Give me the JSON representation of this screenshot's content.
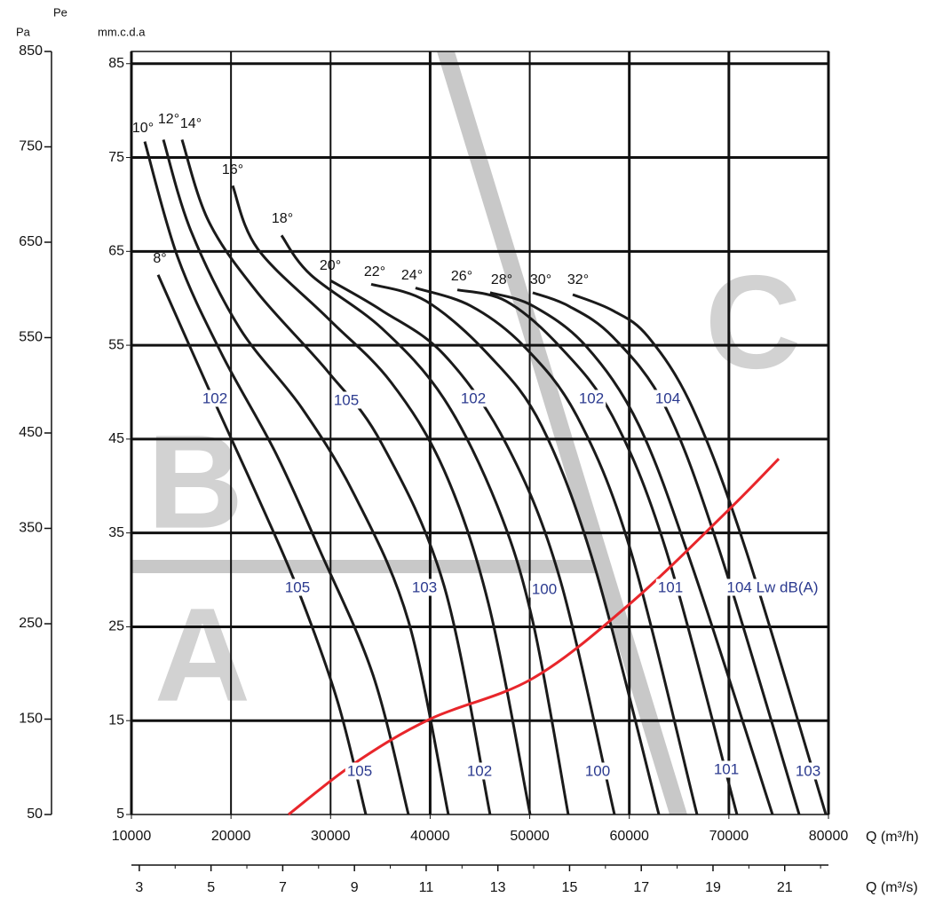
{
  "chart_data": {
    "type": "line",
    "y2_label": "Pa",
    "pressure_symbol": "Pe",
    "y_label": "mm.c.d.a",
    "x_label": "Q (m³/h)",
    "x2_label": "Q (m³/s)",
    "xlim": [
      10000,
      80000
    ],
    "xticks": [
      10000,
      20000,
      30000,
      40000,
      50000,
      60000,
      70000,
      80000
    ],
    "ylim": [
      5,
      86.3
    ],
    "yticks": [
      5,
      15,
      25,
      35,
      45,
      55,
      65,
      75,
      85
    ],
    "y2lim": [
      50,
      850
    ],
    "y2ticks": [
      50,
      150,
      250,
      350,
      450,
      550,
      650,
      750,
      850
    ],
    "x2lim": [
      2.78,
      22.22
    ],
    "x2ticks": [
      3,
      5,
      7,
      9,
      11,
      13,
      15,
      17,
      19,
      21
    ],
    "x2minorticks": [
      4,
      6,
      8,
      10,
      12,
      14,
      16,
      18,
      20,
      22
    ],
    "grid": true,
    "zones": [
      "A",
      "B",
      "C"
    ],
    "zone_color": "#d2d2d2",
    "series": [
      {
        "name": "8°",
        "color": "#1a1a1a",
        "x": [
          12680,
          18200,
          22660,
          26670,
          30690,
          33540
        ],
        "y": [
          62.5,
          49.3,
          38.9,
          29.1,
          17.1,
          5
        ]
      },
      {
        "name": "10°",
        "color": "#1a1a1a",
        "x": [
          11340,
          14640,
          19100,
          24450,
          28900,
          34250,
          37820
        ],
        "y": [
          76.7,
          64.4,
          54.0,
          43.6,
          33.2,
          19.9,
          5
        ]
      },
      {
        "name": "12°",
        "color": "#1a1a1a",
        "x": [
          13210,
          15970,
          20880,
          27120,
          32470,
          37820,
          41830
        ],
        "y": [
          76.9,
          67.2,
          56.8,
          48.3,
          38.9,
          25.6,
          5
        ]
      },
      {
        "name": "14°",
        "color": "#1a1a1a",
        "x": [
          15080,
          17760,
          22660,
          29800,
          35150,
          41390,
          46020
        ],
        "y": [
          76.9,
          68.2,
          60.6,
          52.1,
          44.5,
          29.4,
          5
        ]
      },
      {
        "name": "16°",
        "color": "#1a1a1a",
        "x": [
          20170,
          22660,
          29800,
          36040,
          41390,
          45850,
          50040
        ],
        "y": [
          72.0,
          65.3,
          57.8,
          51.1,
          41.7,
          27.5,
          5
        ]
      },
      {
        "name": "18°",
        "color": "#1a1a1a",
        "x": [
          25070,
          28010,
          35150,
          41390,
          46740,
          50300,
          53870
        ],
        "y": [
          66.7,
          62.5,
          56.8,
          49.3,
          37.9,
          25.6,
          5
        ]
      },
      {
        "name": "20°",
        "color": "#1a1a1a",
        "x": [
          29970,
          35150,
          41390,
          47630,
          52980,
          58510
        ],
        "y": [
          61.9,
          58.7,
          54.0,
          44.5,
          30.3,
          5
        ]
      },
      {
        "name": "22°",
        "color": "#1a1a1a",
        "x": [
          34080,
          39600,
          45850,
          51200,
          56550,
          62970
        ],
        "y": [
          61.5,
          59.7,
          54.0,
          46.4,
          31.3,
          5
        ]
      },
      {
        "name": "24°",
        "color": "#1a1a1a",
        "x": [
          38530,
          44060,
          49410,
          54760,
          60110,
          66800
        ],
        "y": [
          61.1,
          59.2,
          54.9,
          47.4,
          33.2,
          5
        ]
      },
      {
        "name": "26°",
        "color": "#1a1a1a",
        "x": [
          42730,
          47630,
          52980,
          58330,
          63680,
          70810
        ],
        "y": [
          60.9,
          59.7,
          54.9,
          47.4,
          33.2,
          5
        ]
      },
      {
        "name": "28°",
        "color": "#1a1a1a",
        "x": [
          46020,
          50300,
          55650,
          61000,
          66360,
          74380
        ],
        "y": [
          60.6,
          59.2,
          54.9,
          46.4,
          31.3,
          5
        ]
      },
      {
        "name": "30°",
        "color": "#1a1a1a",
        "x": [
          50300,
          53870,
          58330,
          63680,
          69030,
          77060
        ],
        "y": [
          60.6,
          59.2,
          55.9,
          48.3,
          33.2,
          5
        ]
      },
      {
        "name": "32°",
        "color": "#1a1a1a",
        "x": [
          54320,
          58330,
          61890,
          66360,
          71700,
          79740
        ],
        "y": [
          60.4,
          58.7,
          55.9,
          48.3,
          33.2,
          5
        ]
      }
    ],
    "system_curve": {
      "color": "#e8262b",
      "x": [
        25780,
        32470,
        40050,
        50300,
        60110,
        69920,
        75010
      ],
      "y": [
        5,
        10.5,
        15.2,
        19.5,
        27.5,
        37.4,
        42.9
      ]
    },
    "annotations": [
      "102",
      "105",
      "102",
      "102",
      "104",
      "105",
      "103",
      "100",
      "101",
      "104 Lw dB(A)",
      "105",
      "102",
      "100",
      "101",
      "103"
    ],
    "annotation_color": "#2b3a8f"
  }
}
